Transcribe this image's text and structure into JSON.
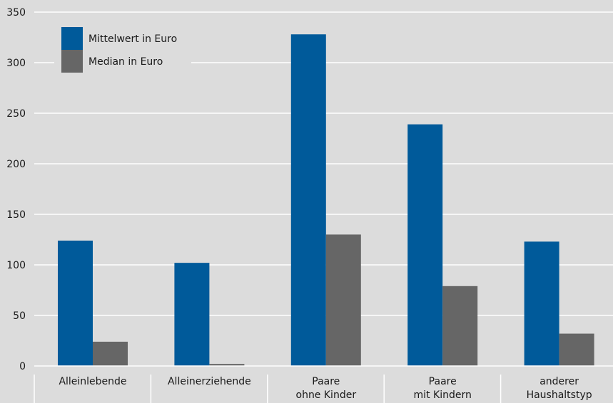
{
  "chart_data": {
    "type": "bar",
    "categories": [
      [
        "Alleinlebende"
      ],
      [
        "Alleinerziehende"
      ],
      [
        "Paare",
        "ohne Kinder"
      ],
      [
        "Paare",
        "mit Kindern"
      ],
      [
        "anderer",
        "Haushaltstyp"
      ]
    ],
    "series": [
      {
        "name": "Mittelwert in Euro",
        "color": "#005a9a",
        "values": [
          124,
          102,
          328,
          239,
          123
        ]
      },
      {
        "name": "Median in Euro",
        "color": "#666666",
        "values": [
          24,
          2,
          130,
          79,
          32
        ]
      }
    ],
    "ylim": [
      0,
      350
    ],
    "yticks": [
      "0",
      "50",
      "100",
      "150",
      "200",
      "250",
      "300",
      "350"
    ],
    "grid": true,
    "legend_position": "top-left"
  }
}
